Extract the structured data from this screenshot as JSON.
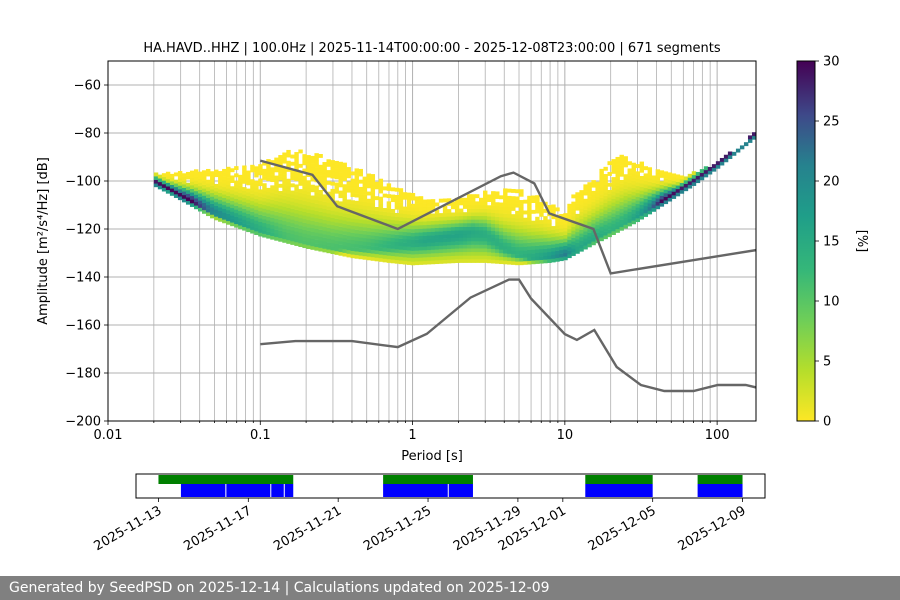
{
  "chart_data": [
    {
      "type": "heatmap",
      "title": "HA.HAVD..HHZ | 100.0Hz | 2025-11-14T00:00:00 - 2025-12-08T23:00:00 | 671 segments",
      "xlabel": "Period [s]",
      "ylabel": "Amplitude [m²/s⁴/Hz] [dB]",
      "xscale": "log",
      "xlim": [
        0.01,
        180
      ],
      "ylim": [
        -200,
        -50
      ],
      "xticks": [
        {
          "value": 0.01,
          "label": "0.01"
        },
        {
          "value": 0.1,
          "label": "0.1"
        },
        {
          "value": 1,
          "label": "1"
        },
        {
          "value": 10,
          "label": "10"
        },
        {
          "value": 100,
          "label": "100"
        }
      ],
      "yticks": [
        -200,
        -180,
        -160,
        -140,
        -120,
        -100,
        -80,
        -60
      ],
      "grid": true,
      "colorbar": {
        "label": "[%]",
        "min": 0,
        "max": 30,
        "ticks": [
          0,
          5,
          10,
          15,
          20,
          25,
          30
        ],
        "colormap": "viridis_r"
      },
      "noise_models": [
        {
          "name": "NHNM",
          "color": "#666666",
          "points": [
            [
              0.1,
              -91.5
            ],
            [
              0.22,
              -97.4
            ],
            [
              0.32,
              -110.5
            ],
            [
              0.8,
              -120
            ],
            [
              3.8,
              -98
            ],
            [
              4.6,
              -96.5
            ],
            [
              6.3,
              -101
            ],
            [
              7.9,
              -113.5
            ],
            [
              15.4,
              -120
            ],
            [
              20,
              -138.5
            ],
            [
              180,
              -128.8
            ]
          ]
        },
        {
          "name": "NLNM",
          "color": "#666666",
          "points": [
            [
              0.1,
              -168
            ],
            [
              0.17,
              -166.7
            ],
            [
              0.4,
              -166.7
            ],
            [
              0.8,
              -169.2
            ],
            [
              1.24,
              -163.7
            ],
            [
              2.4,
              -148.6
            ],
            [
              4.3,
              -141.1
            ],
            [
              5.0,
              -141.1
            ],
            [
              6.0,
              -149
            ],
            [
              10,
              -163.8
            ],
            [
              12,
              -166.2
            ],
            [
              15.6,
              -162.1
            ],
            [
              21.9,
              -177.5
            ],
            [
              31.6,
              -185
            ],
            [
              45,
              -187.5
            ],
            [
              70,
              -187.5
            ],
            [
              101,
              -185
            ],
            [
              154,
              -185
            ],
            [
              180,
              -186
            ]
          ]
        }
      ],
      "psd_density": {
        "x_start": 0.02,
        "x_end": 180,
        "mode": [
          [
            0.02,
            -101
          ],
          [
            0.025,
            -104
          ],
          [
            0.03,
            -107
          ],
          [
            0.04,
            -111
          ],
          [
            0.05,
            -114
          ],
          [
            0.07,
            -118
          ],
          [
            0.1,
            -122
          ],
          [
            0.15,
            -125
          ],
          [
            0.2,
            -127
          ],
          [
            0.3,
            -129
          ],
          [
            0.5,
            -129
          ],
          [
            0.7,
            -128
          ],
          [
            1,
            -126.5
          ],
          [
            1.5,
            -124.5
          ],
          [
            2,
            -123
          ],
          [
            2.5,
            -122
          ],
          [
            3,
            -123
          ],
          [
            3.5,
            -126
          ],
          [
            4,
            -129
          ],
          [
            5,
            -132
          ],
          [
            6,
            -133
          ],
          [
            7,
            -133
          ],
          [
            8,
            -133
          ],
          [
            10,
            -132
          ],
          [
            12,
            -130
          ],
          [
            15,
            -126
          ],
          [
            20,
            -122
          ],
          [
            30,
            -116
          ],
          [
            50,
            -107
          ],
          [
            70,
            -101
          ],
          [
            100,
            -94
          ],
          [
            150,
            -85
          ],
          [
            180,
            -81
          ]
        ],
        "upper": [
          [
            0.02,
            -98
          ],
          [
            0.05,
            -96
          ],
          [
            0.1,
            -94
          ],
          [
            0.15,
            -88
          ],
          [
            0.2,
            -88
          ],
          [
            0.3,
            -92
          ],
          [
            0.5,
            -97
          ],
          [
            0.8,
            -104
          ],
          [
            1.2,
            -108
          ],
          [
            2,
            -108
          ],
          [
            3,
            -105
          ],
          [
            5,
            -104
          ],
          [
            7,
            -108
          ],
          [
            10,
            -114
          ],
          [
            12,
            -104
          ],
          [
            15,
            -100
          ],
          [
            20,
            -92
          ],
          [
            25,
            -90
          ],
          [
            30,
            -92
          ],
          [
            40,
            -96
          ],
          [
            60,
            -99
          ],
          [
            100,
            -93
          ],
          [
            150,
            -85
          ],
          [
            180,
            -80
          ]
        ],
        "lower": [
          [
            0.02,
            -102
          ],
          [
            0.03,
            -108
          ],
          [
            0.05,
            -116
          ],
          [
            0.1,
            -123
          ],
          [
            0.2,
            -128
          ],
          [
            0.4,
            -132
          ],
          [
            0.7,
            -134
          ],
          [
            1,
            -135
          ],
          [
            2,
            -134
          ],
          [
            3,
            -134
          ],
          [
            5,
            -135
          ],
          [
            8,
            -134
          ],
          [
            10,
            -133
          ],
          [
            15,
            -127
          ],
          [
            20,
            -123
          ],
          [
            30,
            -117
          ],
          [
            50,
            -108
          ],
          [
            70,
            -102
          ],
          [
            100,
            -95
          ],
          [
            150,
            -86
          ],
          [
            180,
            -82
          ]
        ]
      }
    },
    {
      "type": "timeline",
      "xlim": [
        "2025-11-12",
        "2025-12-10"
      ],
      "xticks": [
        "2025-11-13",
        "2025-11-17",
        "2025-11-21",
        "2025-11-25",
        "2025-11-29",
        "2025-12-01",
        "2025-12-05",
        "2025-12-09"
      ],
      "available_data": {
        "color": "#008000",
        "ranges": [
          [
            "2025-11-13",
            "2025-11-19"
          ],
          [
            "2025-11-23",
            "2025-11-27"
          ],
          [
            "2025-12-02",
            "2025-12-05"
          ],
          [
            "2025-12-07",
            "2025-12-09"
          ]
        ]
      },
      "processed_psds": {
        "color": "#0000ff",
        "ranges": [
          [
            "2025-11-14",
            "2025-11-19"
          ],
          [
            "2025-11-23",
            "2025-11-27"
          ],
          [
            "2025-12-02",
            "2025-12-05"
          ],
          [
            "2025-12-07",
            "2025-12-09"
          ]
        ]
      },
      "gaps": [
        "2025-11-16",
        "2025-11-18",
        "2025-11-18.6",
        "2025-11-25.9"
      ]
    }
  ],
  "footer": {
    "text": "Generated by SeedPSD on 2025-12-14 | Calculations updated on 2025-12-09"
  }
}
